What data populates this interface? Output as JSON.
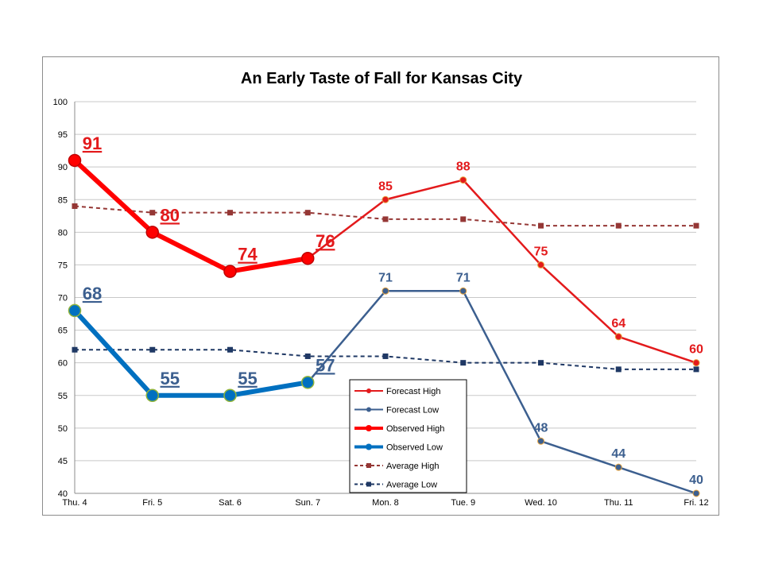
{
  "chart_data": {
    "type": "line",
    "title": "An Early Taste of Fall for Kansas City",
    "xlabel": "",
    "ylabel": "",
    "ylim": [
      40,
      100
    ],
    "ystep": 5,
    "grid": true,
    "legend_position": "bottom-center",
    "categories": [
      "Thu. 4",
      "Fri. 5",
      "Sat. 6",
      "Sun. 7",
      "Mon. 8",
      "Tue. 9",
      "Wed. 10",
      "Thu. 11",
      "Fri. 12"
    ],
    "series": [
      {
        "name": "Average High",
        "color": "#953735",
        "style": "dashed",
        "marker": "square",
        "values": [
          84,
          83,
          83,
          83,
          82,
          82,
          81,
          81,
          81
        ]
      },
      {
        "name": "Average Low",
        "color": "#1f3864",
        "style": "dashed",
        "marker": "square",
        "values": [
          62,
          62,
          62,
          61,
          61,
          60,
          60,
          59,
          59
        ]
      },
      {
        "name": "Forecast High",
        "color": "#e31a1c",
        "style": "solid",
        "marker": "circle",
        "values": [
          null,
          null,
          null,
          76,
          85,
          88,
          75,
          64,
          60
        ]
      },
      {
        "name": "Forecast Low",
        "color": "#3c5f8f",
        "style": "solid",
        "marker": "circle",
        "values": [
          null,
          null,
          null,
          57,
          71,
          71,
          48,
          44,
          40
        ]
      },
      {
        "name": "Observed High",
        "color": "#ff0000",
        "style": "thick",
        "marker": "circle-large",
        "values": [
          91,
          80,
          74,
          76,
          null,
          null,
          null,
          null,
          null
        ]
      },
      {
        "name": "Observed Low",
        "color": "#0070c0",
        "style": "thick",
        "marker": "circle-large",
        "values": [
          68,
          55,
          55,
          57,
          null,
          null,
          null,
          null,
          null
        ]
      }
    ],
    "data_labels": {
      "Observed High": [
        "91",
        "80",
        "74",
        "76"
      ],
      "Observed Low": [
        "68",
        "55",
        "55",
        "57"
      ],
      "Forecast High": [
        "85",
        "88",
        "75",
        "64",
        "60"
      ],
      "Forecast Low": [
        "71",
        "71",
        "48",
        "44",
        "40"
      ]
    },
    "legend_order": [
      "Forecast High",
      "Forecast Low",
      "Observed High",
      "Observed Low",
      "Average High",
      "Average Low"
    ]
  }
}
